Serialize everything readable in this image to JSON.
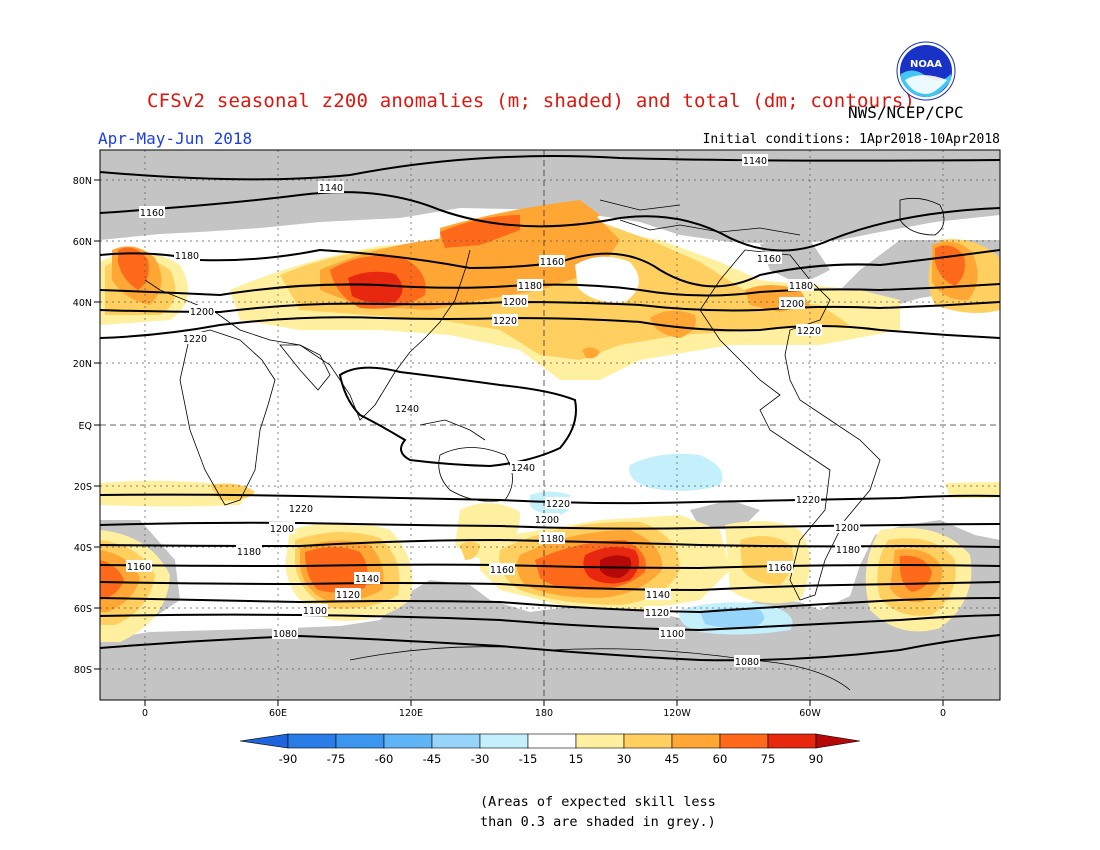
{
  "header": {
    "title": "CFSv2 seasonal z200 anomalies (m; shaded) and total (dm; contours)",
    "agency": "NWS/NCEP/CPC",
    "season": "Apr-May-Jun 2018",
    "initial_conditions": "Initial conditions: 1Apr2018-10Apr2018"
  },
  "logo": {
    "icon": "noaa-logo",
    "text": "NOAA"
  },
  "map": {
    "lat_labels": [
      "80N",
      "60N",
      "40N",
      "20N",
      "EQ",
      "20S",
      "40S",
      "60S",
      "80S"
    ],
    "lon_labels": [
      "0",
      "60E",
      "120E",
      "180",
      "120W",
      "60W",
      "0"
    ],
    "contour_labels": [
      "1140",
      "1140",
      "1160",
      "1160",
      "1160",
      "1180",
      "1180",
      "1180",
      "1200",
      "1200",
      "1200",
      "1220",
      "1220",
      "1220",
      "1240",
      "1240",
      "1220",
      "1220",
      "1220",
      "1200",
      "1200",
      "1200",
      "1180",
      "1180",
      "1180",
      "1160",
      "1160",
      "1160",
      "1140",
      "1140",
      "1120",
      "1120",
      "1100",
      "1100",
      "1080",
      "1080"
    ]
  },
  "colorbar": {
    "labels": [
      "-90",
      "-75",
      "-60",
      "-45",
      "-30",
      "-15",
      "15",
      "30",
      "45",
      "60",
      "75",
      "90"
    ],
    "colors": [
      "#1e64dc",
      "#2a7ce6",
      "#3c96ef",
      "#5fb4f5",
      "#96d4fa",
      "#c4f0fc",
      "#ffffff",
      "#fff0a0",
      "#ffd060",
      "#ffa635",
      "#ff6a1a",
      "#e8280e",
      "#b50808"
    ]
  },
  "legend_note": {
    "line1": "(Areas of expected skill less",
    "line2": "than 0.3 are shaded in grey.)"
  }
}
